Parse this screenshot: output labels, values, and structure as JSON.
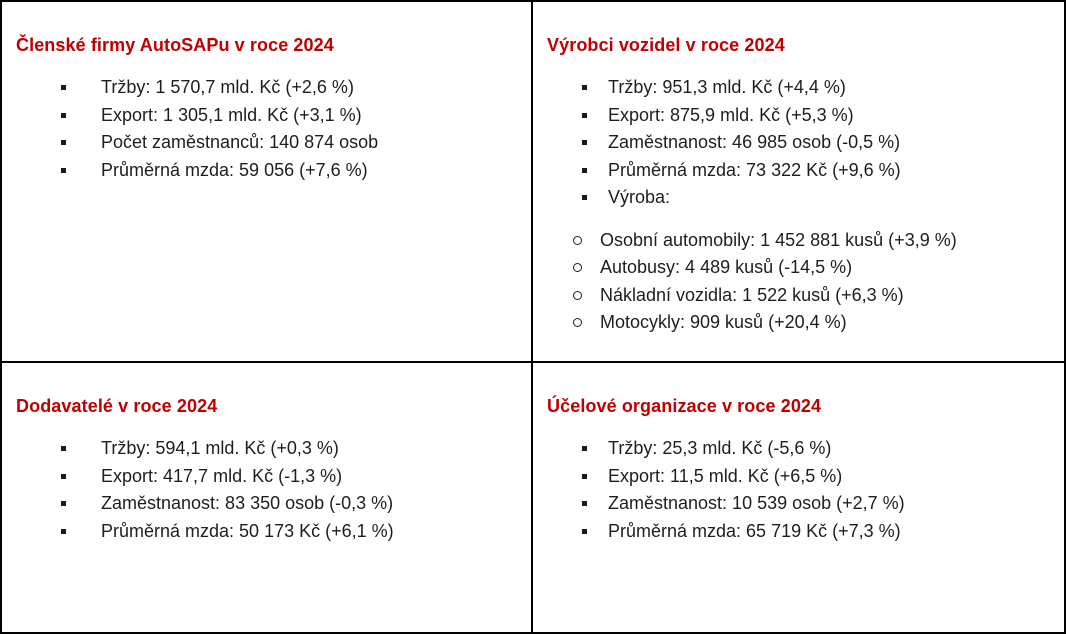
{
  "theme": {
    "background": "#ffffff",
    "border_color": "#000000",
    "heading_color": "#c00000",
    "text_color": "#1e1e1e"
  },
  "bullets": {
    "item_icon": "square-bullet",
    "subitem_icon": "circle-bullet"
  },
  "cells": [
    {
      "id": "clenske-firmy",
      "title": "Členské firmy AutoSAPu v roce 2024",
      "items": [
        "Tržby: 1 570,7 mld. Kč (+2,6 %)",
        "Export: 1 305,1 mld. Kč (+3,1 %)",
        "Počet zaměstnanců: 140 874 osob",
        "Průměrná mzda: 59 056 (+7,6 %)"
      ]
    },
    {
      "id": "vyrobci-vozidel",
      "title": "Výrobci vozidel v roce 2024",
      "items": [
        "Tržby: 951,3 mld. Kč (+4,4 %)",
        "Export: 875,9 mld. Kč (+5,3 %)",
        "Zaměstnanost: 46 985 osob (-0,5 %)",
        "Průměrná mzda: 73 322 Kč (+9,6 %)",
        "Výroba:"
      ],
      "subitems": [
        "Osobní automobily: 1 452 881 kusů (+3,9 %)",
        "Autobusy: 4 489 kusů (-14,5 %)",
        "Nákladní vozidla: 1 522 kusů (+6,3 %)",
        "Motocykly: 909 kusů (+20,4 %)"
      ]
    },
    {
      "id": "dodavatele",
      "title": "Dodavatelé v roce 2024",
      "items": [
        "Tržby: 594,1 mld. Kč (+0,3 %)",
        "Export: 417,7 mld. Kč (-1,3 %)",
        "Zaměstnanost: 83 350 osob (-0,3 %)",
        "Průměrná mzda: 50 173 Kč (+6,1 %)"
      ]
    },
    {
      "id": "ucelove-organizace",
      "title": "Účelové organizace v roce 2024",
      "items": [
        "Tržby: 25,3 mld. Kč (-5,6 %)",
        "Export: 11,5 mld. Kč (+6,5 %)",
        "Zaměstnanost: 10 539 osob (+2,7 %)",
        "Průměrná mzda: 65 719 Kč (+7,3 %)"
      ]
    }
  ]
}
